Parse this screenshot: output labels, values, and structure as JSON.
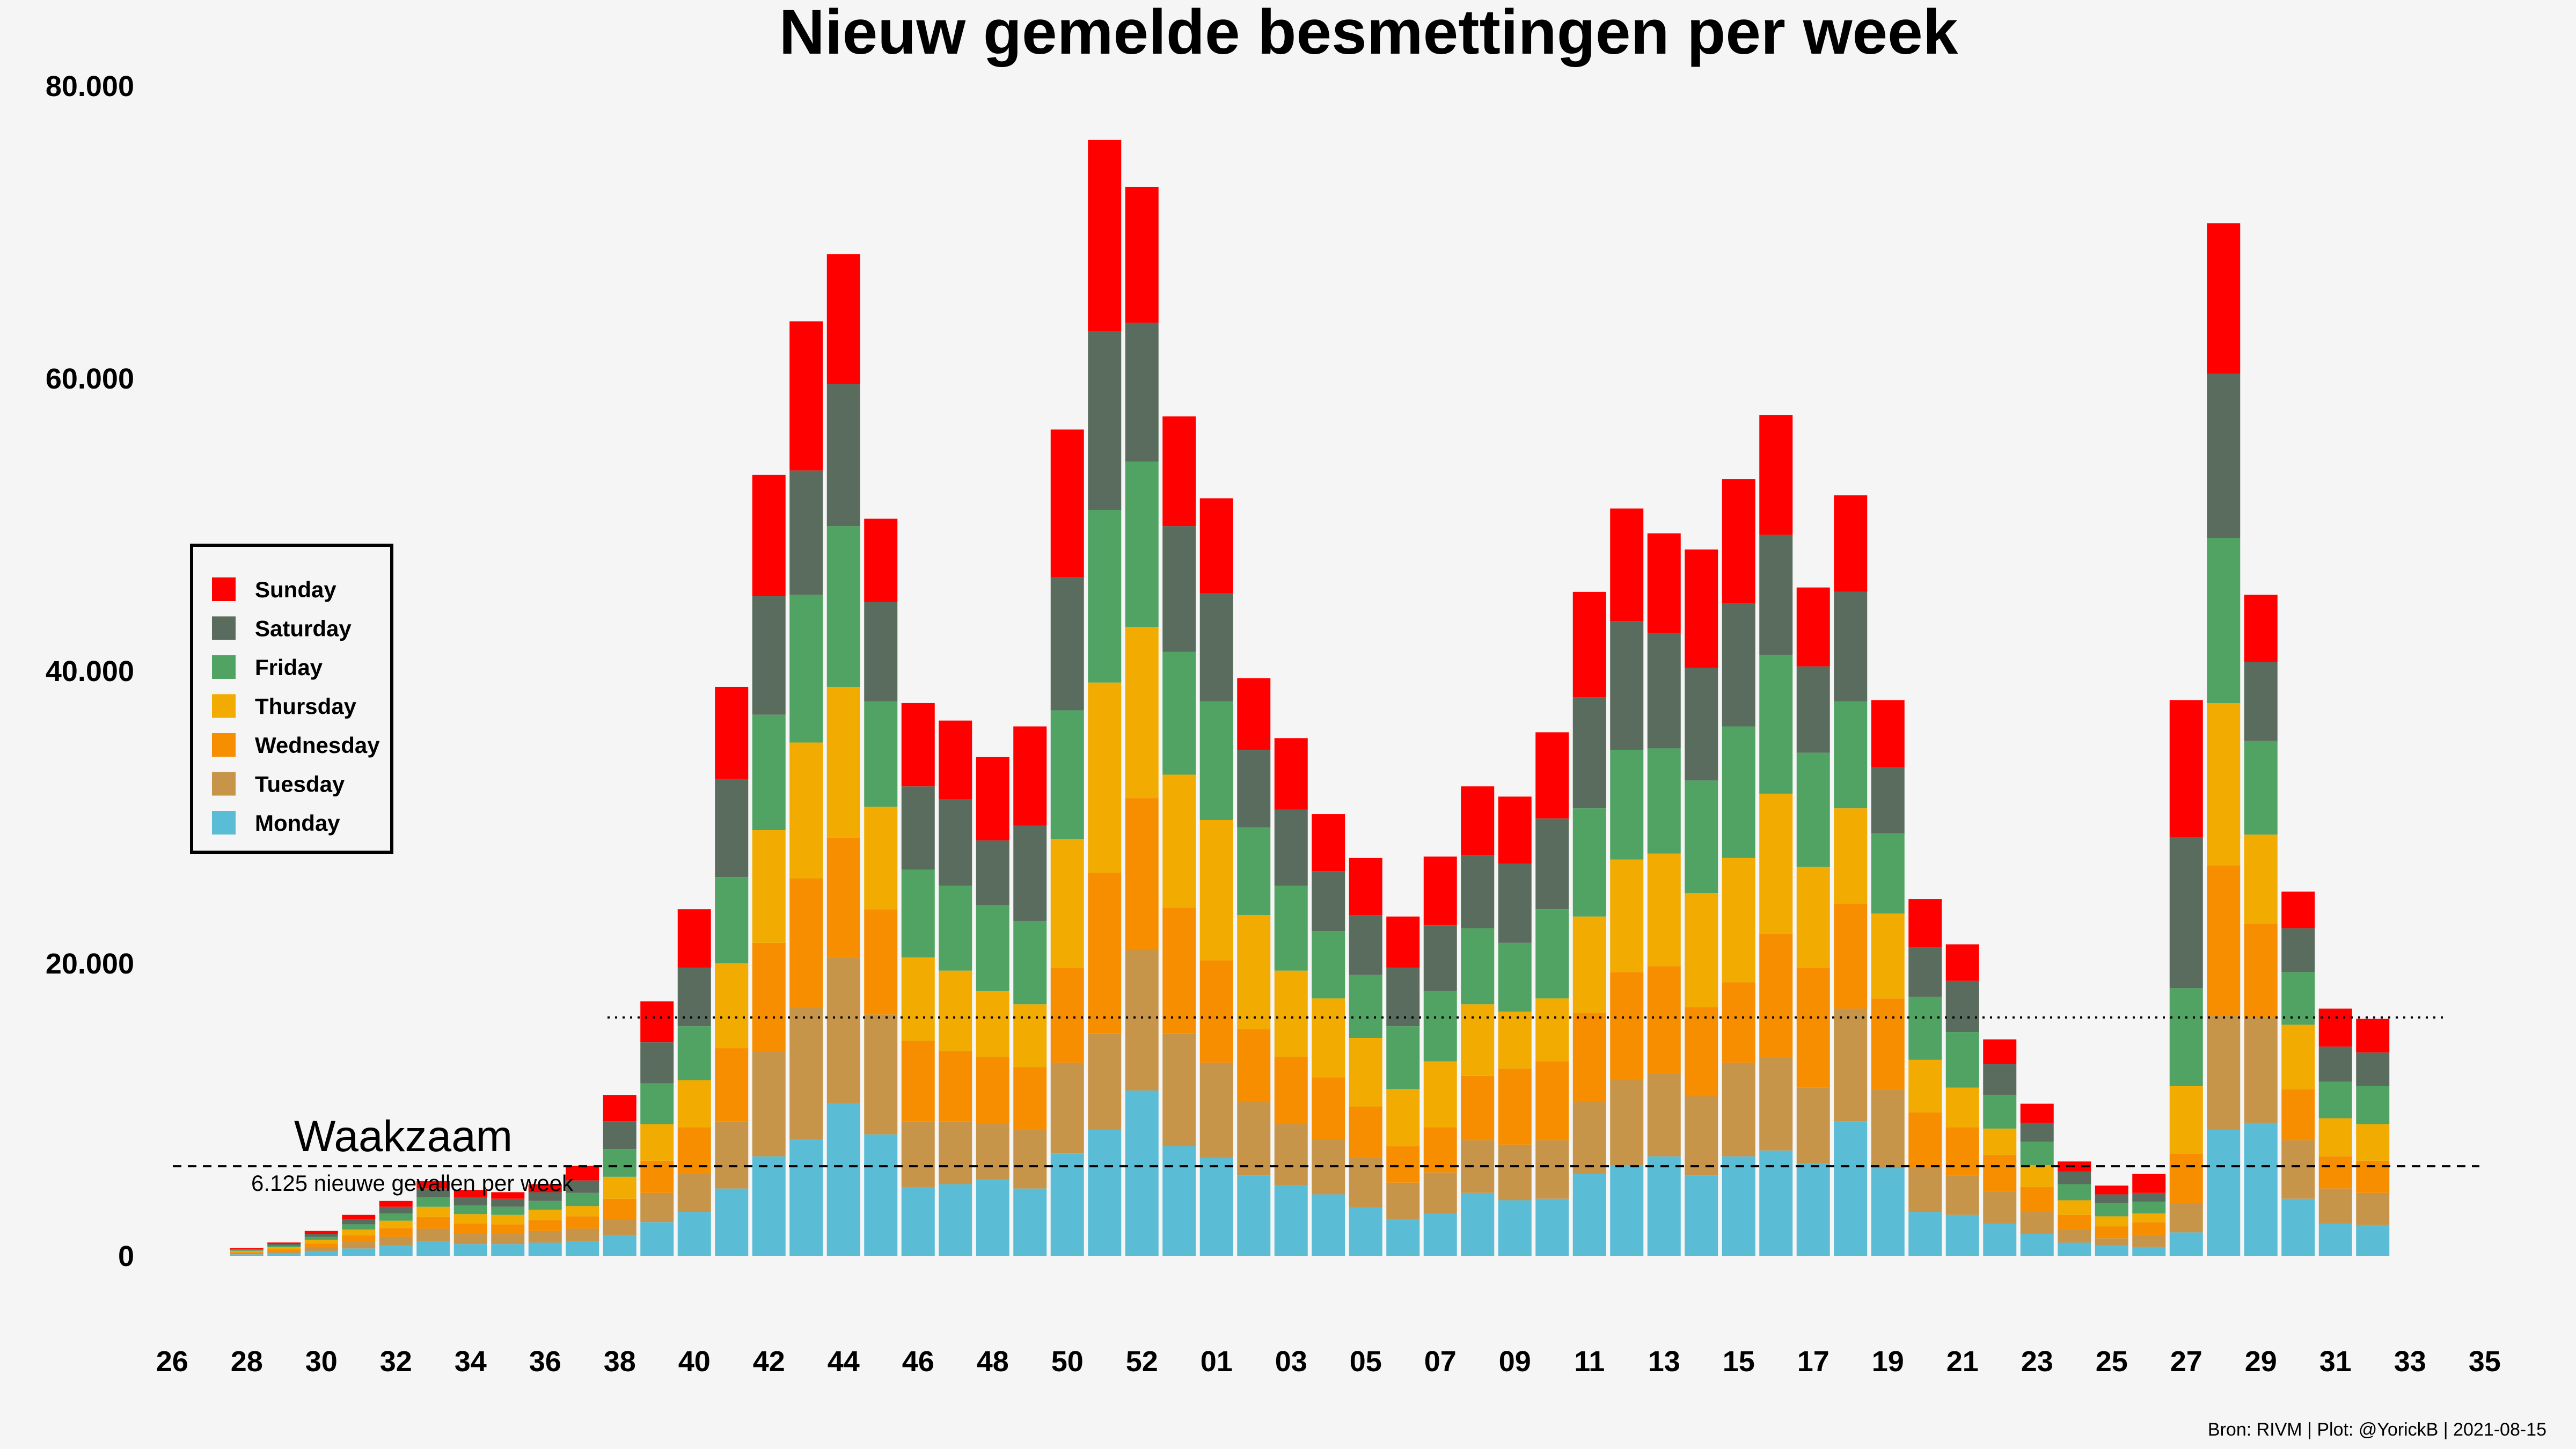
{
  "chart_data": {
    "type": "bar",
    "stacked": true,
    "title": "Nieuw gemelde besmettingen per week",
    "xlabel": "",
    "ylabel": "",
    "ylim": [
      -10000,
      80000
    ],
    "xlim": [
      26,
      35
    ],
    "y_ticks": [
      0,
      20000,
      40000,
      60000,
      80000
    ],
    "y_tick_labels": [
      "0",
      "20.000",
      "40.000",
      "60.000",
      "80.000"
    ],
    "x_tick_labels": [
      "26",
      "28",
      "30",
      "32",
      "34",
      "36",
      "38",
      "40",
      "42",
      "44",
      "46",
      "48",
      "50",
      "52",
      "01",
      "03",
      "05",
      "07",
      "09",
      "11",
      "13",
      "15",
      "17",
      "19",
      "21",
      "23",
      "25",
      "27",
      "29",
      "31",
      "33",
      "35"
    ],
    "grid": false,
    "legend_position": "left",
    "weeks": [
      "28",
      "29",
      "30",
      "31",
      "32",
      "33",
      "34",
      "35",
      "36",
      "37",
      "38",
      "39",
      "40",
      "41",
      "42",
      "43",
      "44",
      "45",
      "46",
      "47",
      "48",
      "49",
      "50",
      "51",
      "52",
      "53",
      "01",
      "02",
      "03",
      "04",
      "05",
      "06",
      "07",
      "08",
      "09",
      "10",
      "11",
      "12",
      "13",
      "14",
      "15",
      "16",
      "17",
      "18",
      "19",
      "20",
      "21",
      "22",
      "23",
      "24",
      "25",
      "26",
      "27",
      "28",
      "29",
      "30",
      "31",
      "32"
    ],
    "series": [
      {
        "name": "Monday",
        "color": "#5bbcd6",
        "values": [
          100,
          160,
          300,
          500,
          700,
          1000,
          800,
          800,
          900,
          1000,
          1400,
          2300,
          3000,
          4600,
          6800,
          8000,
          10400,
          8300,
          4700,
          4900,
          5200,
          4600,
          7000,
          8600,
          11300,
          7500,
          6700,
          5500,
          4800,
          4200,
          3300,
          2500,
          2900,
          4300,
          3800,
          3900,
          5600,
          6200,
          6800,
          5500,
          6800,
          7200,
          6300,
          9200,
          6000,
          3000,
          2800,
          2200,
          1500,
          900,
          700,
          600,
          1600,
          8600,
          9100,
          3900,
          2200,
          2100
        ]
      },
      {
        "name": "Tuesday",
        "color": "#c6954a",
        "values": [
          90,
          150,
          300,
          450,
          600,
          850,
          700,
          700,
          800,
          850,
          1100,
          2000,
          2600,
          4600,
          7200,
          9000,
          10000,
          8200,
          4500,
          4300,
          3800,
          4000,
          6200,
          6600,
          9600,
          7700,
          6500,
          5000,
          4200,
          3800,
          3400,
          2500,
          2800,
          3600,
          3800,
          4000,
          4900,
          5800,
          5700,
          5400,
          6400,
          6400,
          5200,
          7700,
          5400,
          3000,
          2700,
          2200,
          1500,
          900,
          500,
          800,
          2000,
          7800,
          7200,
          4000,
          2400,
          2200
        ]
      },
      {
        "name": "Wednesday",
        "color": "#f78e00",
        "values": [
          80,
          140,
          250,
          450,
          600,
          800,
          700,
          650,
          750,
          850,
          1400,
          2200,
          3200,
          5000,
          7400,
          8800,
          8200,
          7200,
          5500,
          4800,
          4600,
          4300,
          6500,
          11000,
          10400,
          8600,
          7000,
          5000,
          4600,
          4200,
          3500,
          2500,
          3100,
          4400,
          5200,
          5400,
          6100,
          7400,
          7300,
          6100,
          5500,
          8400,
          8200,
          7200,
          6200,
          3800,
          3300,
          2500,
          1700,
          1000,
          800,
          900,
          3400,
          10300,
          6400,
          3500,
          2200,
          2200
        ]
      },
      {
        "name": "Thursday",
        "color": "#f2ab00",
        "values": [
          70,
          130,
          250,
          400,
          500,
          700,
          650,
          650,
          700,
          700,
          1500,
          2500,
          3200,
          5800,
          7700,
          9300,
          10300,
          7000,
          5700,
          5500,
          4500,
          4300,
          8800,
          13000,
          11700,
          9100,
          9600,
          7800,
          5900,
          5400,
          4700,
          3900,
          4500,
          4900,
          3900,
          4300,
          6600,
          7700,
          7700,
          7800,
          8500,
          9600,
          6900,
          6500,
          5800,
          3600,
          2700,
          1800,
          1500,
          1000,
          700,
          600,
          4600,
          11100,
          6100,
          4400,
          2600,
          2500
        ]
      },
      {
        "name": "Friday",
        "color": "#50a362",
        "values": [
          70,
          120,
          200,
          350,
          500,
          650,
          600,
          550,
          600,
          900,
          1900,
          2800,
          3700,
          5900,
          7900,
          10100,
          11000,
          7200,
          6000,
          5800,
          5900,
          5700,
          8800,
          11800,
          11300,
          8400,
          8100,
          6000,
          5800,
          4600,
          4300,
          4300,
          4800,
          5200,
          4700,
          6100,
          7400,
          7500,
          7200,
          7700,
          9000,
          9500,
          7800,
          7300,
          5500,
          4300,
          3800,
          2300,
          1600,
          1100,
          900,
          800,
          6700,
          11300,
          6400,
          3600,
          2500,
          2600
        ]
      },
      {
        "name": "Saturday",
        "color": "#5a6c5e",
        "values": [
          60,
          110,
          200,
          350,
          450,
          600,
          550,
          550,
          600,
          850,
          1900,
          2800,
          4000,
          6700,
          8100,
          8500,
          9700,
          6800,
          5700,
          5900,
          4400,
          6500,
          9100,
          12200,
          9500,
          8600,
          7400,
          5300,
          5200,
          4100,
          4100,
          4000,
          4500,
          5000,
          5400,
          6200,
          7600,
          8800,
          7900,
          7700,
          8400,
          8200,
          5900,
          7500,
          4500,
          3400,
          3500,
          2100,
          1300,
          850,
          600,
          600,
          10300,
          11200,
          5400,
          3000,
          2400,
          2300
        ]
      },
      {
        "name": "Sunday",
        "color": "#ff0000",
        "values": [
          60,
          100,
          200,
          300,
          400,
          500,
          500,
          450,
          550,
          1000,
          1800,
          2800,
          4000,
          6300,
          8300,
          10200,
          8900,
          5700,
          5700,
          5400,
          5700,
          6800,
          10100,
          13100,
          9300,
          7500,
          6500,
          4900,
          4900,
          3900,
          3900,
          3500,
          4700,
          4700,
          4600,
          5900,
          7200,
          7700,
          6800,
          8100,
          8500,
          8200,
          5400,
          6600,
          4600,
          3300,
          2500,
          1700,
          1300,
          700,
          600,
          1300,
          9400,
          10300,
          4600,
          2500,
          2600,
          2300
        ]
      }
    ],
    "reference_lines": [
      {
        "style": "dashed",
        "value": 6125,
        "label": "Waakzaam",
        "sublabel": "6.125 nieuwe gevallen per week"
      },
      {
        "style": "dotted",
        "value": 16300,
        "from_week": 37
      }
    ],
    "source": "Bron: RIVM | Plot: @YorickB |  2021-08-15"
  }
}
